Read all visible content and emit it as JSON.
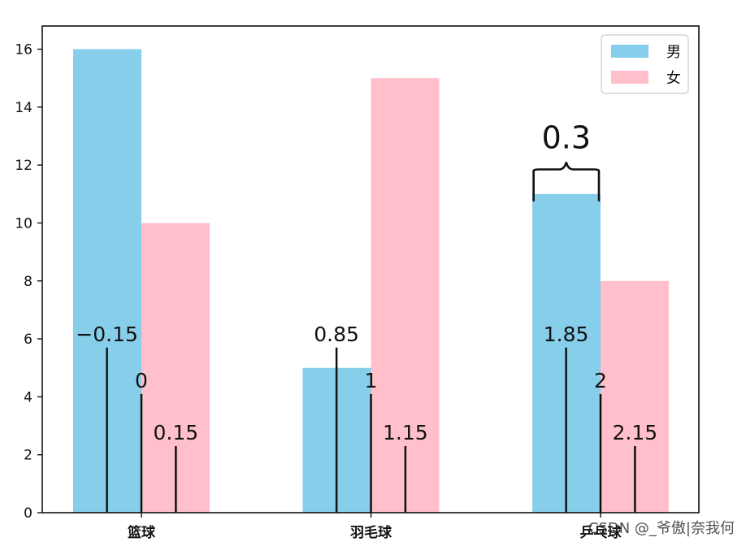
{
  "chart_data": {
    "type": "bar",
    "title": "",
    "xlabel": "",
    "ylabel": "",
    "ylim": [
      0,
      16.8
    ],
    "yticks": [
      0,
      2,
      4,
      6,
      8,
      10,
      12,
      14,
      16
    ],
    "categories": [
      "篮球",
      "羽毛球",
      "乒乓球"
    ],
    "series": [
      {
        "name": "男",
        "values": [
          16,
          5,
          11
        ],
        "color": "#87CEEB"
      },
      {
        "name": "女",
        "values": [
          10,
          15,
          8
        ],
        "color": "#FFC0CB"
      }
    ],
    "legend": {
      "position": "top-right",
      "entries": [
        "男",
        "女"
      ]
    },
    "position_markers": [
      {
        "x": -0.15,
        "height": 5.7,
        "label": "−0.15"
      },
      {
        "x": 0,
        "height": 4.1,
        "label": "0"
      },
      {
        "x": 0.15,
        "height": 2.3,
        "label": "0.15"
      },
      {
        "x": 0.85,
        "height": 5.7,
        "label": "0.85"
      },
      {
        "x": 1,
        "height": 4.1,
        "label": "1"
      },
      {
        "x": 1.15,
        "height": 2.3,
        "label": "1.15"
      },
      {
        "x": 1.85,
        "height": 5.7,
        "label": "1.85"
      },
      {
        "x": 2,
        "height": 4.1,
        "label": "2"
      },
      {
        "x": 2.15,
        "height": 2.3,
        "label": "2.15"
      }
    ],
    "brace_annotation": {
      "x_from": 1.85,
      "x_to": 2.0,
      "label": "0.3"
    },
    "watermark": "CSDN @_爷傲|奈我何"
  }
}
